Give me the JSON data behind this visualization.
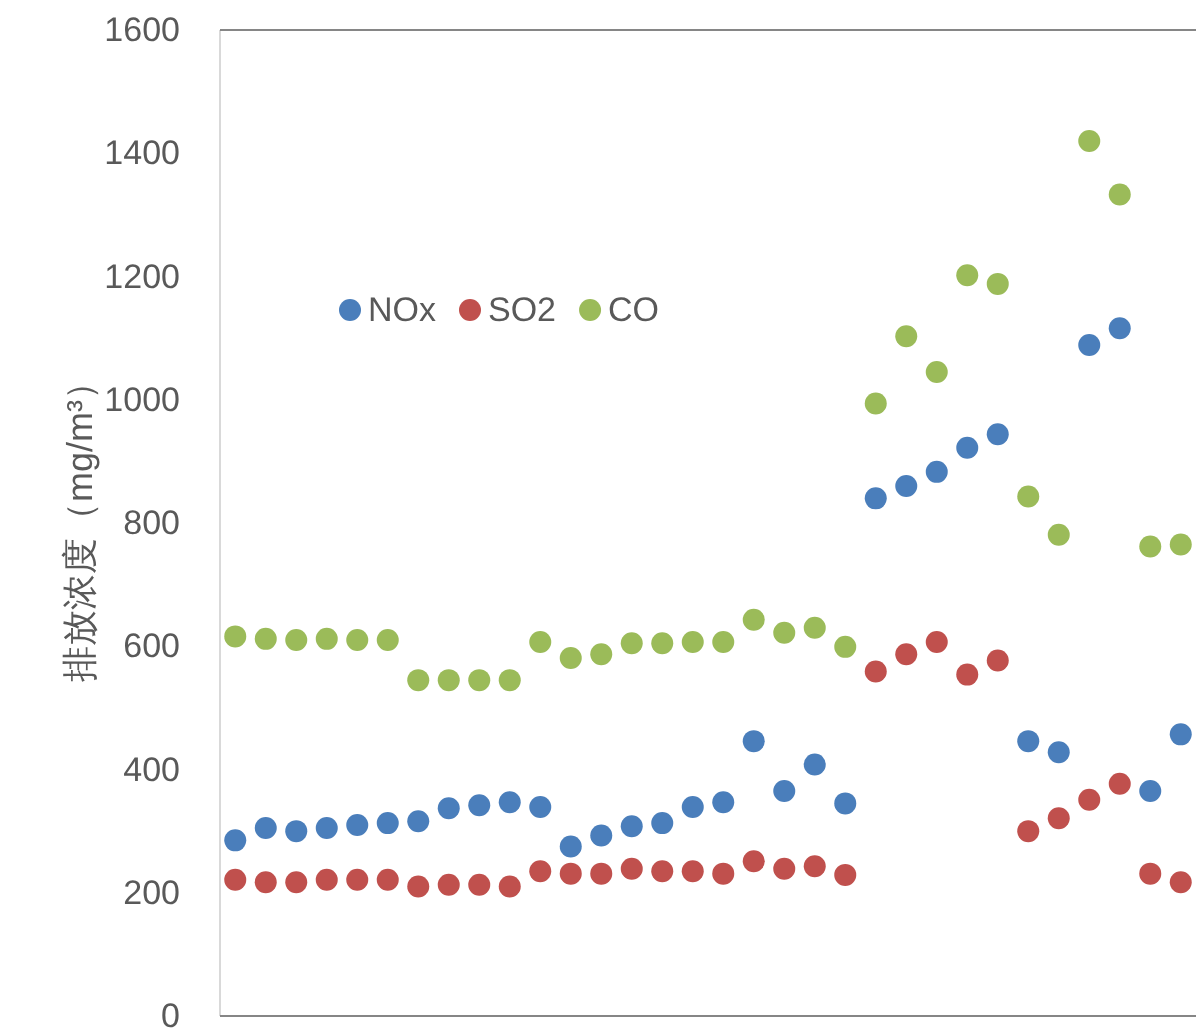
{
  "chart_data": {
    "type": "scatter",
    "ylabel": "排放浓度（mg/m³）",
    "categories": [
      null,
      null,
      null,
      null,
      null,
      null,
      null,
      null,
      null,
      null,
      null,
      null,
      null,
      null,
      null,
      null,
      null,
      null,
      null,
      null,
      null,
      null,
      null,
      null,
      null,
      null,
      null,
      null,
      null,
      null,
      null,
      null
    ],
    "series": [
      {
        "name": "NOx",
        "color": "#4a7ebb",
        "values": [
          285,
          305,
          300,
          305,
          310,
          313,
          316,
          337,
          342,
          347,
          339,
          275,
          293,
          308,
          313,
          339,
          347,
          446,
          365,
          408,
          345,
          840,
          860,
          883,
          922,
          944,
          446,
          428,
          1089,
          1116,
          365,
          457
        ]
      },
      {
        "name": "SO2",
        "color": "#c0504d",
        "values": [
          221,
          217,
          217,
          221,
          221,
          221,
          210,
          213,
          213,
          210,
          235,
          231,
          231,
          239,
          235,
          235,
          231,
          251,
          239,
          243,
          229,
          559,
          587,
          607,
          554,
          577,
          300,
          321,
          351,
          377,
          231,
          217
        ]
      },
      {
        "name": "CO",
        "color": "#9bbb59",
        "values": [
          616,
          612,
          610,
          612,
          610,
          610,
          545,
          545,
          545,
          545,
          607,
          581,
          587,
          605,
          605,
          607,
          607,
          643,
          622,
          630,
          599,
          994,
          1103,
          1045,
          1202,
          1188,
          843,
          781,
          1420,
          1333,
          762,
          765
        ]
      }
    ],
    "ylim": [
      0,
      1600
    ],
    "yticks": [
      0,
      200,
      400,
      600,
      800,
      1000,
      1200,
      1400,
      1600
    ],
    "marker": "circle",
    "legend": "top left"
  }
}
